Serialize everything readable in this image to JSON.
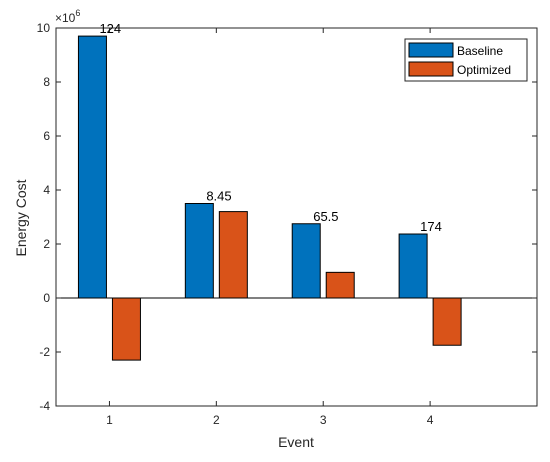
{
  "chart_data": {
    "type": "bar",
    "title": "",
    "xlabel": "Event",
    "ylabel": "Energy Cost",
    "y_exponent_label": "×10",
    "y_exponent_power": "6",
    "y_multiplier": 1000000,
    "categories": [
      "1",
      "2",
      "3",
      "4"
    ],
    "ylim": [
      -4000000,
      10000000
    ],
    "yticks": [
      -4000000,
      -2000000,
      0,
      2000000,
      4000000,
      6000000,
      8000000,
      10000000
    ],
    "ytick_labels": [
      "-4",
      "-2",
      "0",
      "2",
      "4",
      "6",
      "8",
      "10"
    ],
    "series": [
      {
        "name": "Baseline",
        "color": "#0072BD",
        "values": [
          9700000,
          3500000,
          2750000,
          2370000
        ]
      },
      {
        "name": "Optimized",
        "color": "#D95319",
        "values": [
          -2300000,
          3200000,
          950000,
          -1750000
        ]
      }
    ],
    "data_labels": [
      "124",
      "8.45",
      "65.5",
      "174"
    ],
    "legend_position": "top-right",
    "grid": false
  }
}
